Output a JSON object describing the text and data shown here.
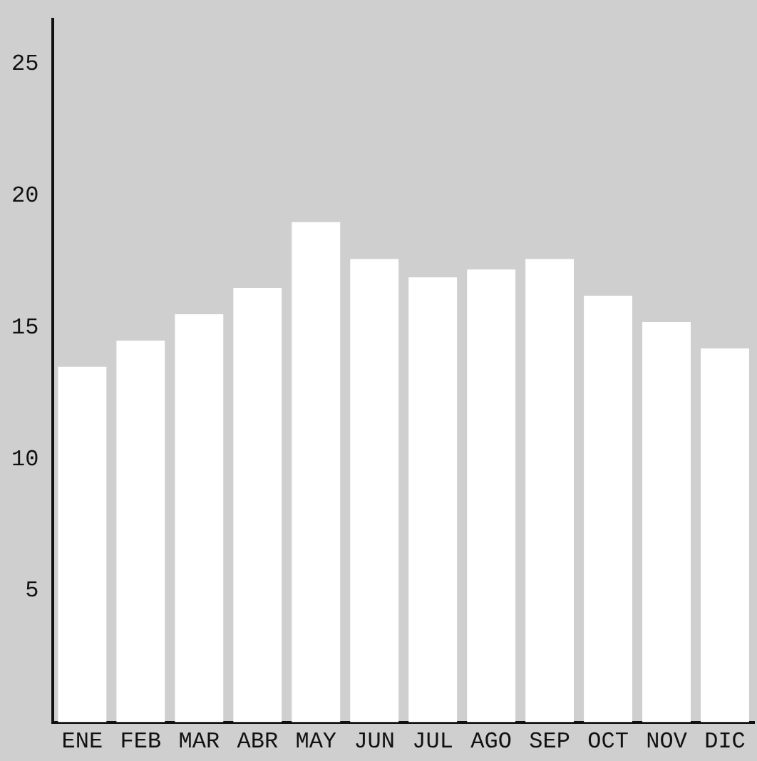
{
  "chart_data": {
    "type": "bar",
    "categories": [
      "ENE",
      "FEB",
      "MAR",
      "ABR",
      "MAY",
      "JUN",
      "JUL",
      "AGO",
      "SEP",
      "OCT",
      "NOV",
      "DIC"
    ],
    "values": [
      13.5,
      14.5,
      15.5,
      16.5,
      19,
      17.6,
      16.9,
      17.2,
      17.6,
      16.2,
      15.2,
      14.2
    ],
    "color": "#ffffff",
    "ylim": [
      0,
      26.7
    ],
    "yticks": [
      5,
      10,
      15,
      20,
      25
    ],
    "grid": false,
    "legend": false
  }
}
